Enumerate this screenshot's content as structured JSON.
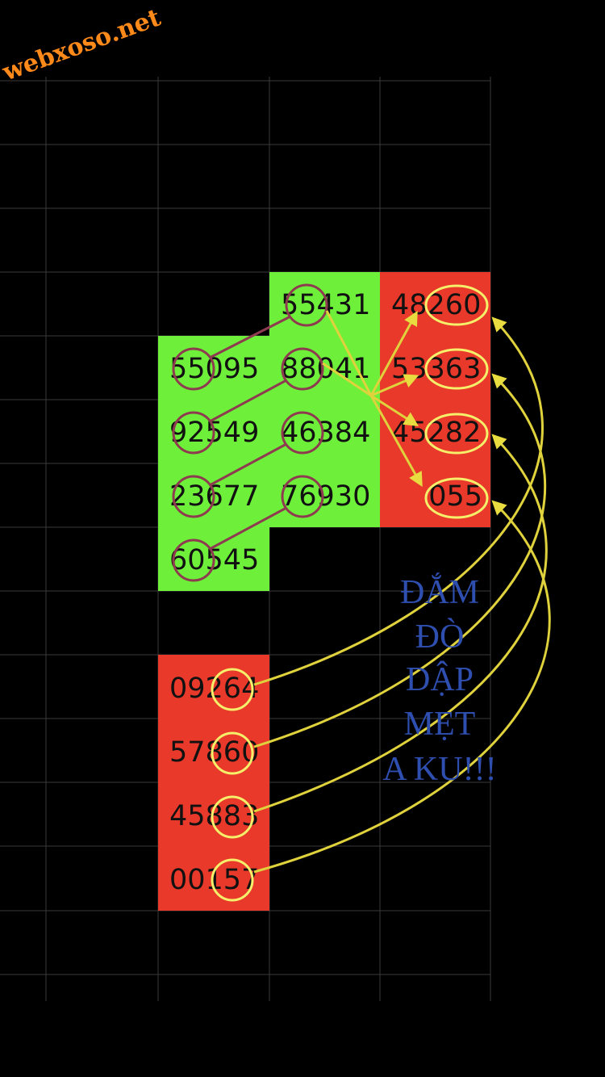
{
  "watermark": "webxoso.net",
  "green_cells": [
    "55431",
    "55095",
    "88041",
    "92549",
    "46384",
    "23677",
    "76930",
    "60545"
  ],
  "red_cells_right": [
    "48260",
    "53363",
    "45282",
    "055"
  ],
  "red_cells_bottom": [
    "09264",
    "57860",
    "45883",
    "00157"
  ],
  "caption": [
    "ĐẮM",
    "ĐÒ",
    "DẬP",
    "MẸT",
    "A KU!!!"
  ]
}
